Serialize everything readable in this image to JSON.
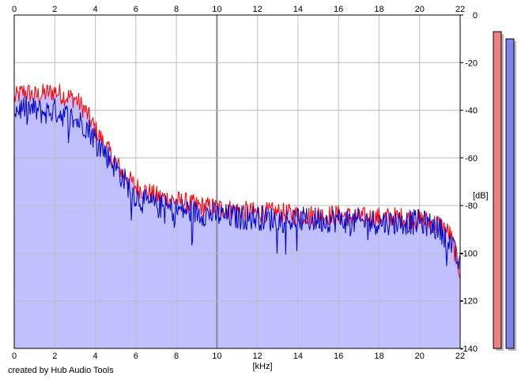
{
  "credit": "created by Hub Audio Tools",
  "chart_data": {
    "type": "area",
    "title": "",
    "xlabel": "[kHz]",
    "ylabel": "[dB]",
    "xlim": [
      0,
      22
    ],
    "ylim": [
      -140,
      0
    ],
    "x_ticks": [
      "0",
      "2",
      "4",
      "6",
      "8",
      "10",
      "12",
      "14",
      "16",
      "18",
      "20",
      "22"
    ],
    "x_tick_values": [
      0,
      2,
      4,
      6,
      8,
      10,
      12,
      14,
      16,
      18,
      20,
      22
    ],
    "y_ticks": [
      "0",
      "-20",
      "-40",
      "-60",
      "-80",
      "-100",
      "-120",
      "-140"
    ],
    "y_tick_values": [
      0,
      -20,
      -40,
      -60,
      -80,
      -100,
      -120,
      -140
    ],
    "grid": true,
    "colors": {
      "fill": "#c0c0ff",
      "series_red": "#ff0000",
      "series_blue": "#0000cc",
      "grid": "#bcbcbc",
      "major_grid": "#888888",
      "meter_red": "#f08080",
      "meter_blue": "#8080f0"
    },
    "series": [
      {
        "color": "red",
        "x": [
          0,
          0.5,
          1,
          1.5,
          2,
          2.5,
          3,
          3.5,
          4,
          4.5,
          5,
          5.5,
          6,
          6.5,
          7,
          7.5,
          8,
          8.5,
          9,
          10,
          11,
          12,
          13,
          14,
          15,
          16,
          17,
          18,
          19,
          20,
          20.5,
          21,
          21.5,
          22
        ],
        "values": [
          -35,
          -32,
          -34,
          -33,
          -32,
          -34,
          -35,
          -40,
          -48,
          -55,
          -62,
          -68,
          -72,
          -74,
          -76,
          -77,
          -78,
          -79,
          -80,
          -81,
          -82,
          -83,
          -83,
          -84,
          -84,
          -84,
          -85,
          -85,
          -85,
          -86,
          -87,
          -88,
          -92,
          -108
        ]
      },
      {
        "color": "blue",
        "x": [
          0,
          0.5,
          1,
          1.5,
          2,
          2.5,
          3,
          3.5,
          4,
          4.5,
          5,
          5.5,
          6,
          6.5,
          7,
          7.5,
          8,
          8.5,
          9,
          10,
          11,
          12,
          13,
          14,
          15,
          16,
          17,
          18,
          19,
          20,
          20.5,
          21,
          21.5,
          22
        ],
        "values": [
          -40,
          -39,
          -40,
          -41,
          -40,
          -42,
          -44,
          -46,
          -52,
          -58,
          -64,
          -70,
          -76,
          -79,
          -80,
          -81,
          -82,
          -82,
          -83,
          -84,
          -85,
          -85,
          -86,
          -86,
          -86,
          -86,
          -87,
          -87,
          -87,
          -87,
          -88,
          -90,
          -95,
          -106
        ]
      }
    ],
    "level_meters": [
      {
        "color": "red",
        "value": -7
      },
      {
        "color": "blue",
        "value": -10
      }
    ]
  }
}
